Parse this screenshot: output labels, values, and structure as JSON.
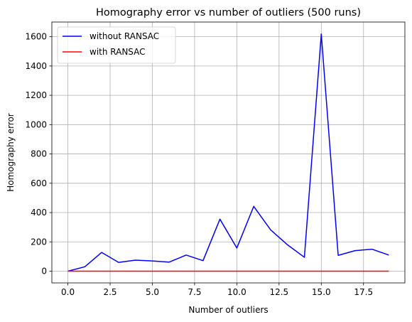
{
  "chart_data": {
    "type": "line",
    "title": "Homography error vs number of outliers (500 runs)",
    "xlabel": "Number of outliers",
    "ylabel": "Homography error",
    "xlim": [
      -0.95,
      19.95
    ],
    "ylim": [
      -80,
      1700
    ],
    "xticks": [
      0.0,
      2.5,
      5.0,
      7.5,
      10.0,
      12.5,
      15.0,
      17.5
    ],
    "xtick_labels": [
      "0.0",
      "2.5",
      "5.0",
      "7.5",
      "10.0",
      "12.5",
      "15.0",
      "17.5"
    ],
    "yticks": [
      0,
      200,
      400,
      600,
      800,
      1000,
      1200,
      1400,
      1600
    ],
    "ytick_labels": [
      "0",
      "200",
      "400",
      "600",
      "800",
      "1000",
      "1200",
      "1400",
      "1600"
    ],
    "grid": true,
    "legend_position": "top-left",
    "x": [
      0,
      1,
      2,
      3,
      4,
      5,
      6,
      7,
      8,
      9,
      10,
      11,
      12,
      13,
      14,
      15,
      16,
      17,
      18,
      19
    ],
    "series": [
      {
        "name": "without RANSAC",
        "color": "#0000ff",
        "values": [
          0,
          30,
          128,
          60,
          75,
          70,
          62,
          110,
          72,
          355,
          158,
          442,
          282,
          180,
          95,
          1618,
          108,
          140,
          150,
          110
        ]
      },
      {
        "name": "with RANSAC",
        "color": "#ff0000",
        "values": [
          0,
          0,
          0,
          0,
          0,
          0,
          0,
          0,
          0,
          0,
          0,
          0,
          0,
          0,
          0,
          0,
          0,
          0,
          0,
          0
        ]
      }
    ]
  }
}
